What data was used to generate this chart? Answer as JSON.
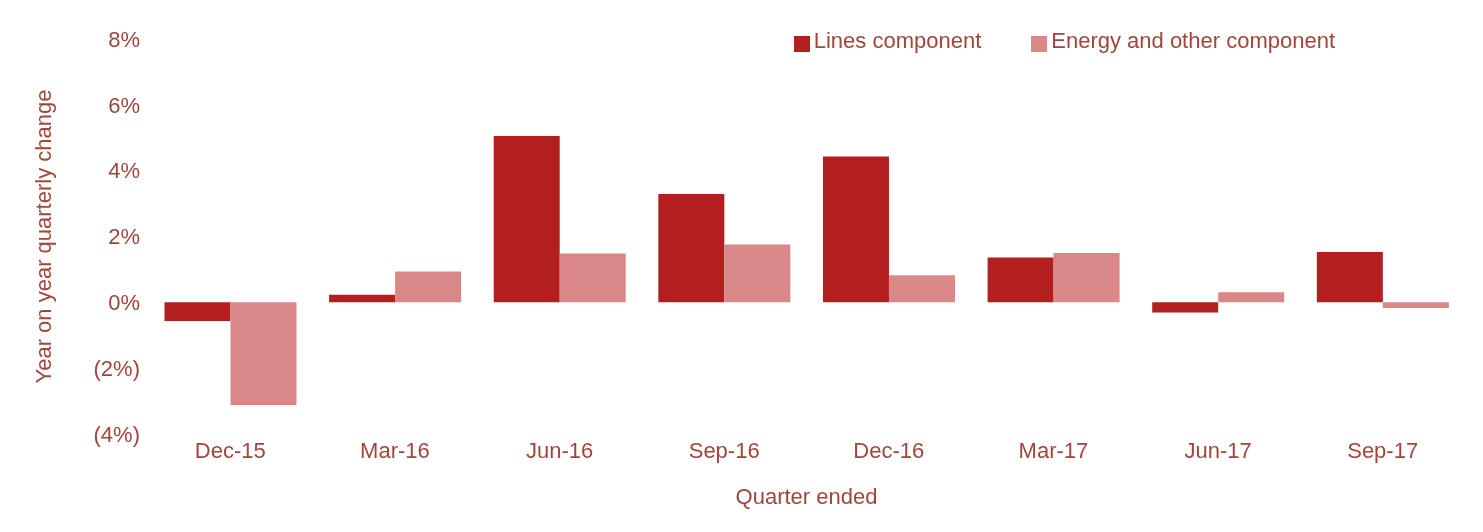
{
  "chart_data": {
    "type": "bar",
    "xlabel": "Quarter ended",
    "ylabel": "Year on year quarterly change",
    "categories": [
      "Dec-15",
      "Mar-16",
      "Jun-16",
      "Sep-16",
      "Dec-16",
      "Mar-17",
      "Jun-17",
      "Sep-17"
    ],
    "series": [
      {
        "name": "Lines component",
        "color": "#b31f1f",
        "values": [
          -0.57,
          0.23,
          5.05,
          3.29,
          4.43,
          1.36,
          -0.31,
          1.53
        ]
      },
      {
        "name": "Energy and other component",
        "color": "#d98787",
        "values": [
          -3.12,
          0.94,
          1.48,
          1.76,
          0.82,
          1.5,
          0.31,
          -0.17
        ]
      }
    ],
    "ylim": [
      -4,
      8
    ],
    "yticks": [
      {
        "value": -4,
        "label": "(4%)"
      },
      {
        "value": -2,
        "label": "(2%)"
      },
      {
        "value": 0,
        "label": "0%"
      },
      {
        "value": 2,
        "label": "2%"
      },
      {
        "value": 4,
        "label": "4%"
      },
      {
        "value": 6,
        "label": "6%"
      },
      {
        "value": 8,
        "label": "8%"
      }
    ],
    "grid": false,
    "legend": "top right"
  }
}
